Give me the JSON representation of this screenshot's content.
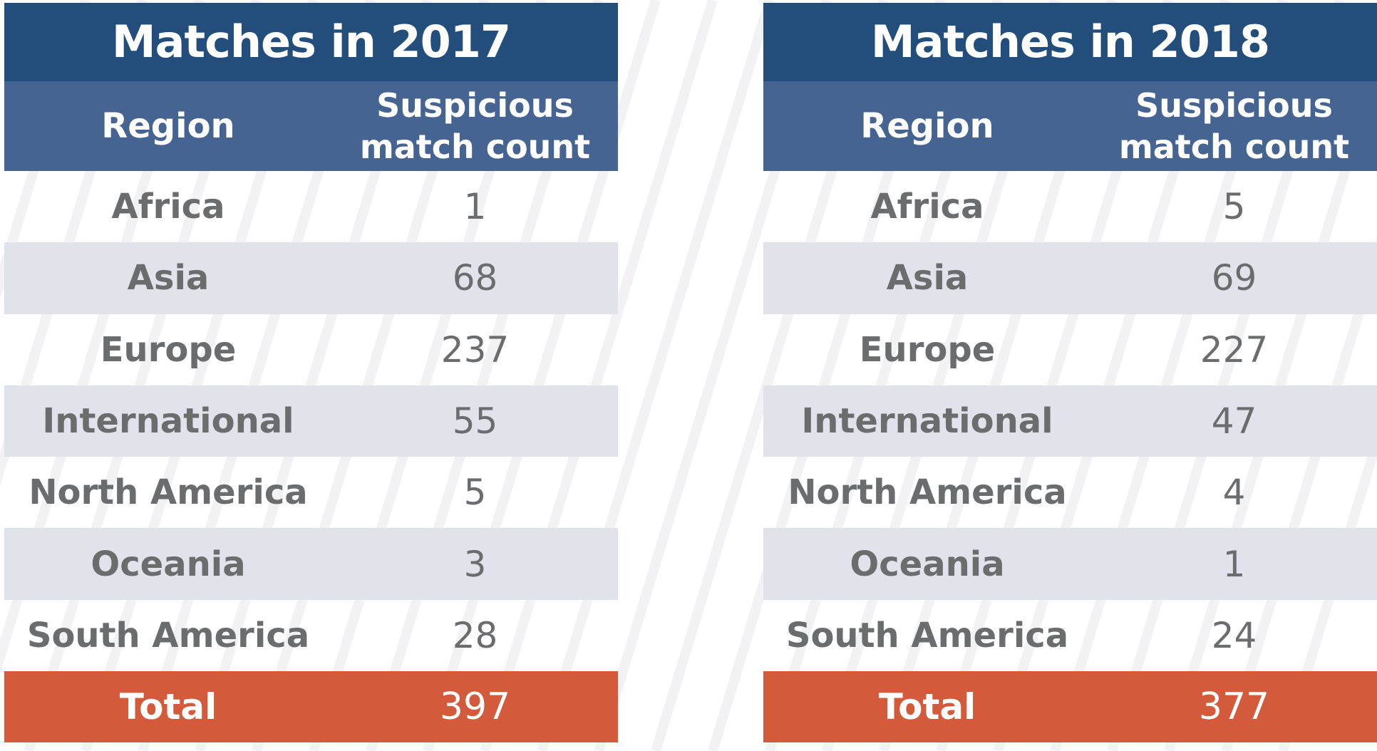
{
  "colors": {
    "title_bg": "#234e7c",
    "header_bg": "#466491",
    "row_shade_bg": "#dfe2e8",
    "total_bg": "#d35a3b",
    "body_text": "#6b6c6e",
    "header_text": "#ffffff"
  },
  "tables": [
    {
      "title": "Matches in 2017",
      "header": {
        "region": "Region",
        "count_line1": "Suspicious",
        "count_line2": "match count"
      },
      "rows": [
        {
          "region": "Africa",
          "count": "1"
        },
        {
          "region": "Asia",
          "count": "68"
        },
        {
          "region": "Europe",
          "count": "237"
        },
        {
          "region": "International",
          "count": "55"
        },
        {
          "region": "North America",
          "count": "5"
        },
        {
          "region": "Oceania",
          "count": "3"
        },
        {
          "region": "South America",
          "count": "28"
        }
      ],
      "total": {
        "label": "Total",
        "count": "397"
      }
    },
    {
      "title": "Matches in 2018",
      "header": {
        "region": "Region",
        "count_line1": "Suspicious",
        "count_line2": "match count"
      },
      "rows": [
        {
          "region": "Africa",
          "count": "5"
        },
        {
          "region": "Asia",
          "count": "69"
        },
        {
          "region": "Europe",
          "count": "227"
        },
        {
          "region": "International",
          "count": "47"
        },
        {
          "region": "North America",
          "count": "4"
        },
        {
          "region": "Oceania",
          "count": "1"
        },
        {
          "region": "South America",
          "count": "24"
        }
      ],
      "total": {
        "label": "Total",
        "count": "377"
      }
    }
  ]
}
